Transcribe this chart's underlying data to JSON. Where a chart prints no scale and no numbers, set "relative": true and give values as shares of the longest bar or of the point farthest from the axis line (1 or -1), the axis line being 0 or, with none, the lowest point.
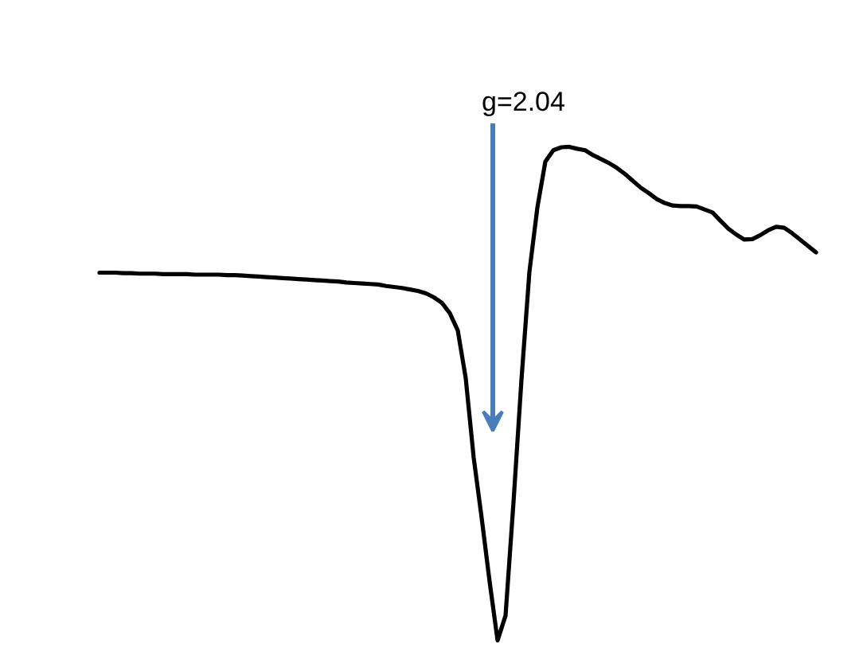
{
  "chart_data": {
    "type": "line",
    "relative": true,
    "tick_labels": false,
    "line_style": "solid",
    "categories": [
      null,
      null,
      null,
      null,
      null,
      null,
      null,
      null,
      null,
      null,
      null,
      null,
      null,
      null,
      null,
      null,
      null,
      null,
      null,
      null,
      null,
      null,
      null,
      null,
      null,
      null,
      null,
      null,
      null,
      null,
      null,
      null,
      null,
      null,
      null,
      null,
      null,
      null,
      null,
      null,
      null,
      null,
      null,
      null,
      null,
      null,
      null,
      null,
      null,
      null,
      null,
      null,
      null,
      null,
      null,
      null,
      null,
      null,
      null,
      null,
      null,
      null,
      null,
      null,
      null,
      null,
      null,
      null,
      null,
      null,
      null,
      null,
      null,
      null,
      null,
      null,
      null,
      null,
      null,
      null,
      null,
      null,
      null,
      null,
      null,
      null,
      null,
      null,
      null,
      null,
      null
    ],
    "series": [
      {
        "color": "#000000",
        "values": [
          0.745,
          0.745,
          0.745,
          0.744,
          0.744,
          0.743,
          0.743,
          0.743,
          0.742,
          0.742,
          0.742,
          0.742,
          0.741,
          0.741,
          0.741,
          0.741,
          0.74,
          0.74,
          0.739,
          0.738,
          0.737,
          0.736,
          0.735,
          0.734,
          0.733,
          0.732,
          0.731,
          0.73,
          0.729,
          0.728,
          0.727,
          0.725,
          0.724,
          0.723,
          0.722,
          0.721,
          0.718,
          0.716,
          0.714,
          0.711,
          0.708,
          0.703,
          0.695,
          0.684,
          0.663,
          0.628,
          0.531,
          0.37,
          0.248,
          0.119,
          0,
          0.05,
          0.28,
          0.528,
          0.747,
          0.877,
          0.97,
          0.993,
          0.999,
          1,
          0.996,
          0.993,
          0.983,
          0.975,
          0.967,
          0.957,
          0.945,
          0.931,
          0.917,
          0.906,
          0.894,
          0.886,
          0.881,
          0.88,
          0.88,
          0.879,
          0.873,
          0.867,
          0.85,
          0.834,
          0.822,
          0.812,
          0.813,
          0.821,
          0.831,
          0.838,
          0.836,
          0.825,
          0.812,
          0.799,
          0.786
        ]
      }
    ],
    "annotations": [
      "g=2.04"
    ]
  }
}
